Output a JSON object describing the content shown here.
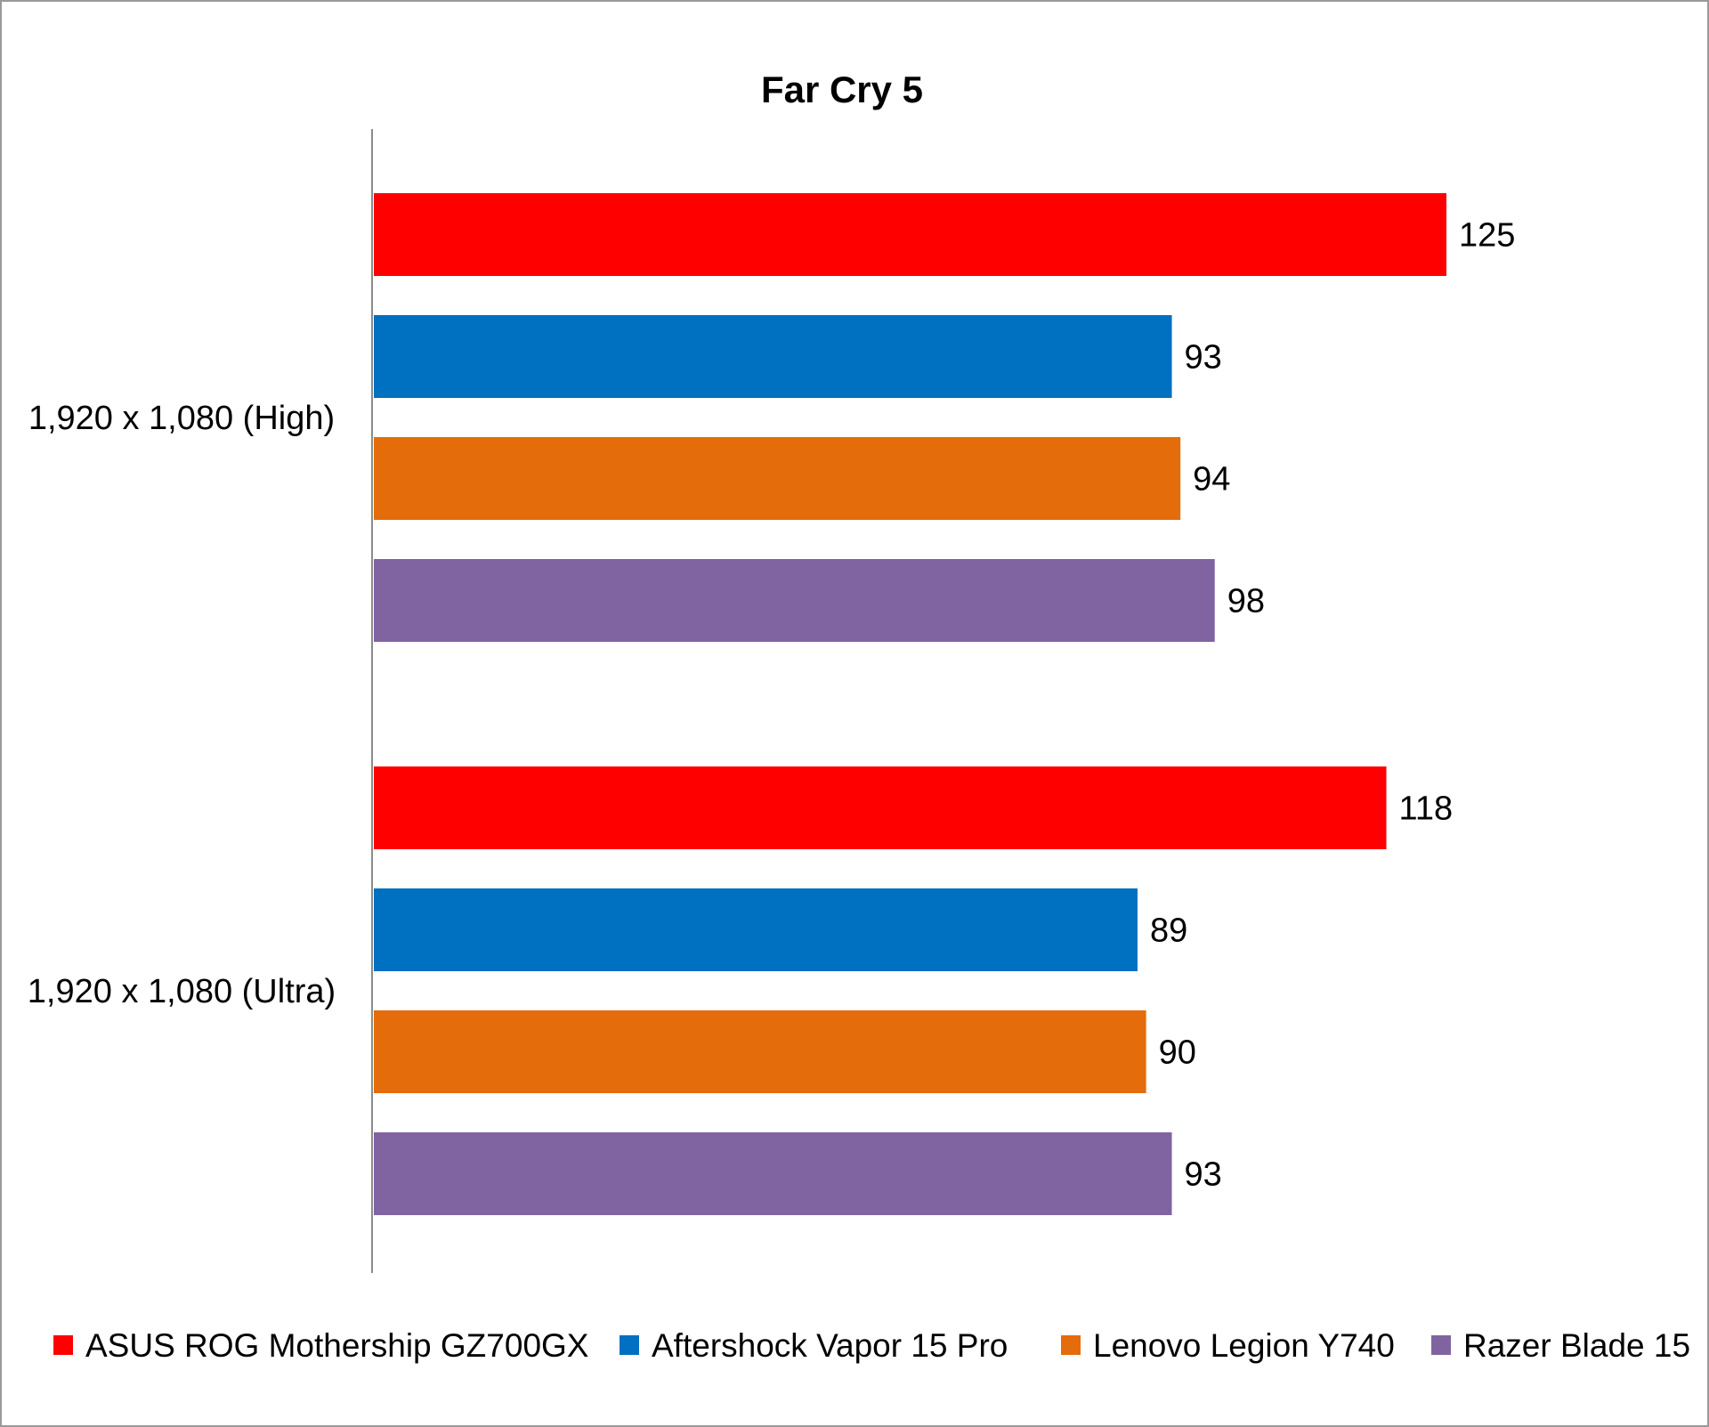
{
  "chart_data": {
    "type": "bar",
    "orientation": "horizontal",
    "title": "Far Cry 5",
    "xlabel": "",
    "ylabel": "",
    "xlim": [
      0,
      125
    ],
    "grid": false,
    "legend_position": "bottom",
    "categories": [
      "1,920 x 1,080 (High)",
      "1,920 x 1,080 (Ultra)"
    ],
    "series": [
      {
        "name": "ASUS ROG Mothership GZ700GX",
        "color": "#ff0000",
        "values": [
          125,
          118
        ]
      },
      {
        "name": "Aftershock Vapor 15 Pro",
        "color": "#0070c0",
        "values": [
          93,
          89
        ]
      },
      {
        "name": "Lenovo Legion Y740",
        "color": "#e46c0a",
        "values": [
          94,
          90
        ]
      },
      {
        "name": "Razer Blade 15",
        "color": "#8064a2",
        "values": [
          98,
          93
        ]
      }
    ]
  }
}
